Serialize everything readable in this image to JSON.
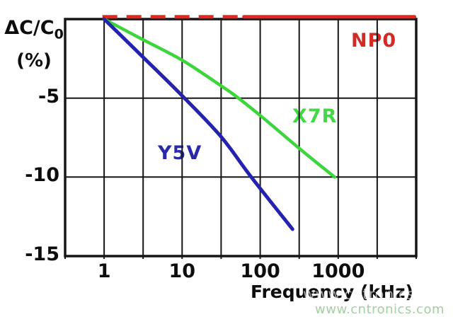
{
  "colors": {
    "grid": "#161616",
    "text": "#0d0d0d",
    "np0_red": "#d32a26",
    "x7r_green": "#3cd63c",
    "y5v_blue": "#2323af"
  },
  "watermark": {
    "text": "www.cntronics.com",
    "color": "#a4cfa4"
  },
  "chart_data": {
    "type": "line",
    "xlabel": "Frequency (kHz)",
    "ylabel_main": "ΔC/C",
    "ylabel_sub": "0",
    "ylabel_unit": "(%)",
    "x_scale": "log",
    "xlim": [
      0.3162,
      10000
    ],
    "ylim": [
      -15,
      0
    ],
    "grid": "on",
    "x_gridlines": [
      0.3162,
      1,
      3.162,
      10,
      31.62,
      100,
      316.2,
      1000,
      3162,
      10000
    ],
    "y_gridlines": [
      0,
      -5,
      -10,
      -15
    ],
    "x_tick_labels": [
      {
        "value": 1,
        "label": "1"
      },
      {
        "value": 10,
        "label": "10"
      },
      {
        "value": 100,
        "label": "100"
      },
      {
        "value": 1000,
        "label": "1000"
      }
    ],
    "y_tick_labels": [
      {
        "value": -5,
        "label": "-5"
      },
      {
        "value": -10,
        "label": "-10"
      },
      {
        "value": -15,
        "label": "-15"
      }
    ],
    "series": [
      {
        "id": "np0-dashed",
        "name": "NP0",
        "color": "#e02820",
        "stroke_width": 5,
        "style": "dashed",
        "points": [
          [
            0.95,
            0.15
          ],
          [
            62,
            0.15
          ]
        ]
      },
      {
        "id": "np0-solid",
        "name": "NP0",
        "color": "#e02820",
        "stroke_width": 5,
        "style": "solid",
        "points": [
          [
            62,
            0.15
          ],
          [
            9500,
            0.15
          ]
        ]
      },
      {
        "id": "x7r",
        "name": "X7R",
        "color": "#3cd63c",
        "stroke_width": 4.5,
        "style": "solid",
        "points": [
          [
            1,
            0
          ],
          [
            3,
            -1.25
          ],
          [
            10,
            -2.6
          ],
          [
            31,
            -4.2
          ],
          [
            48,
            -4.85
          ],
          [
            100,
            -6.1
          ],
          [
            320,
            -8.2
          ],
          [
            900,
            -10.0
          ]
        ]
      },
      {
        "id": "y5v",
        "name": "Y5V",
        "color": "#2323af",
        "stroke_width": 5,
        "style": "solid",
        "points": [
          [
            1,
            0
          ],
          [
            3,
            -2.3
          ],
          [
            10,
            -4.85
          ],
          [
            31,
            -7.4
          ],
          [
            77,
            -10.0
          ],
          [
            260,
            -13.3
          ]
        ]
      }
    ],
    "curve_labels": [
      {
        "text": "NP0",
        "color": "#d32a26"
      },
      {
        "text": "X7R",
        "color": "#44d844"
      },
      {
        "text": "Y5V",
        "color": "#2a2aa6"
      }
    ]
  }
}
